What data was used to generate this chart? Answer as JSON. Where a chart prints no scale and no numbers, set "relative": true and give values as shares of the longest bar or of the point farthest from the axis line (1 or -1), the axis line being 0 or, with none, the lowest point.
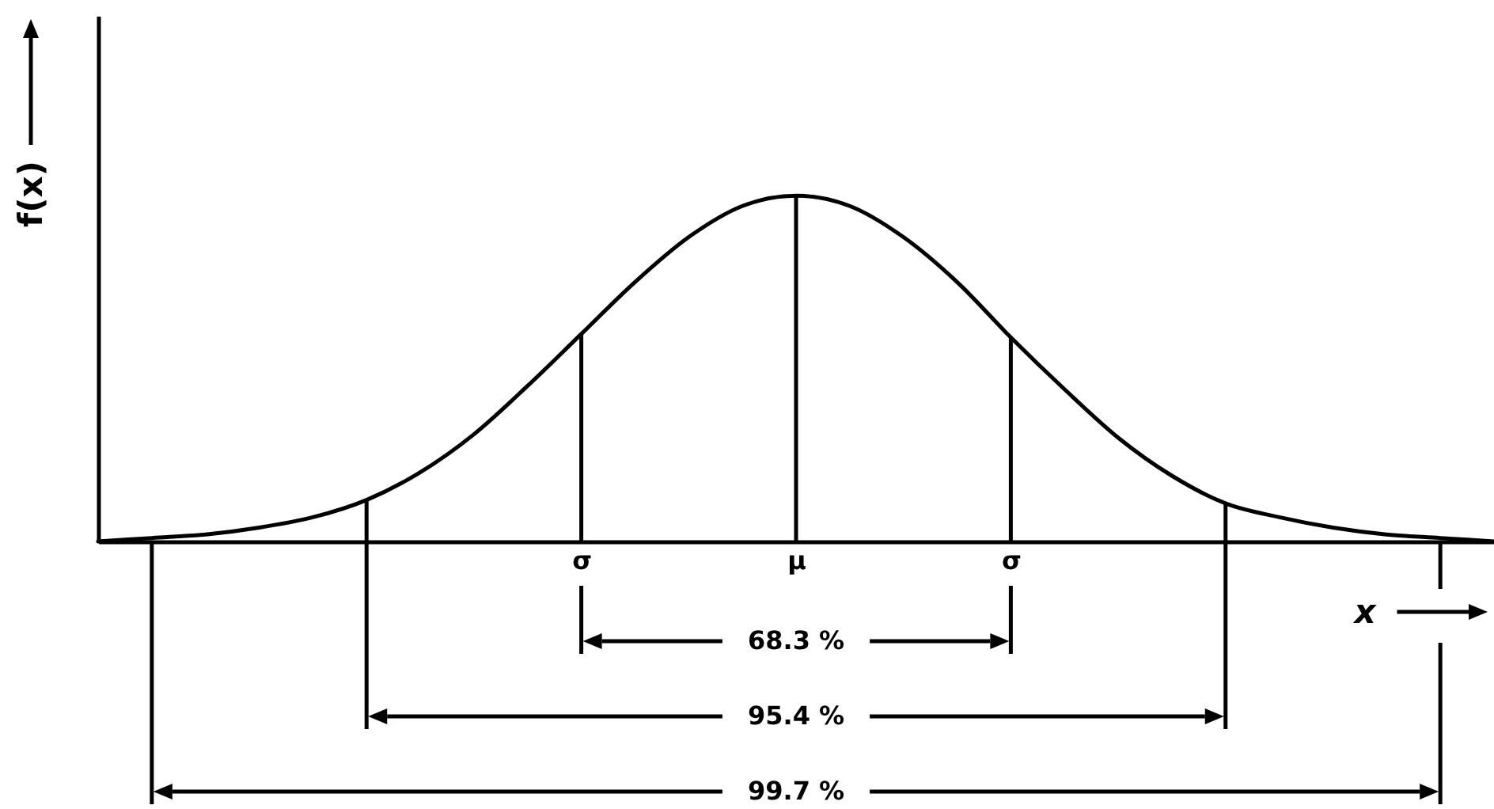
{
  "chart_data": {
    "type": "line",
    "xlabel": "x",
    "ylabel": "f(x)",
    "relative": true,
    "categories": [
      null,
      null,
      null,
      null,
      null,
      null,
      null,
      null,
      null,
      "σ",
      null,
      null,
      null,
      "μ",
      null,
      null,
      null,
      "σ",
      null,
      null,
      null,
      null,
      null,
      null,
      null,
      null,
      null
    ],
    "series": [
      {
        "color": "#000000",
        "values": [
          0,
          0.01,
          0.02,
          0.04,
          0.07,
          0.12,
          0.2,
          0.31,
          0.45,
          0.6,
          0.75,
          0.88,
          0.97,
          1,
          0.97,
          0.88,
          0.75,
          0.59,
          0.44,
          0.3,
          0.19,
          0.11,
          0.07,
          0.04,
          0.02,
          0.01,
          0
        ]
      },
      {
        "type": "bar",
        "color": "#000000",
        "values": [
          null,
          null,
          null,
          null,
          null,
          0.12,
          null,
          null,
          null,
          0.6,
          null,
          null,
          null,
          1,
          null,
          null,
          null,
          0.59,
          null,
          null,
          null,
          0.11,
          null,
          null,
          null,
          null,
          null
        ]
      }
    ],
    "annotations": [
      "68.3 %",
      "95.4 %",
      "99.7 %"
    ]
  }
}
